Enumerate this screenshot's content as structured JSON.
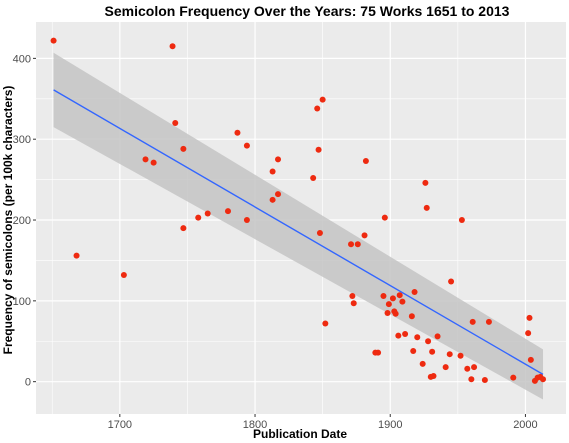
{
  "chart_data": {
    "type": "scatter",
    "title": "Semicolon Frequency Over the Years: 75 Works 1651 to 2013",
    "xlabel": "Publication Date",
    "ylabel": "Frequency of semicolons (per 100k characters)",
    "xlim": [
      1638,
      2030
    ],
    "ylim": [
      -40,
      445
    ],
    "x_ticks": [
      1700,
      1800,
      1900,
      2000
    ],
    "x_tick_labels": [
      "1700",
      "1800",
      "1900",
      "2000"
    ],
    "y_ticks": [
      0,
      100,
      200,
      300,
      400
    ],
    "y_tick_labels": [
      "0",
      "100",
      "200",
      "300",
      "400"
    ],
    "grid": true,
    "colors": {
      "panel_background": "#ebebeb",
      "grid": "#ffffff",
      "points": "#ee2a10",
      "trend_line": "#3366ff",
      "confidence_band": "#c4c4c4"
    },
    "trend": {
      "method": "linear",
      "x": [
        1651,
        2013
      ],
      "y": [
        361,
        9
      ],
      "band_upper": [
        407,
        40
      ],
      "band_lower": [
        315,
        -22
      ]
    },
    "points": [
      {
        "x": 1651,
        "y": 422
      },
      {
        "x": 1668,
        "y": 156
      },
      {
        "x": 1703,
        "y": 132
      },
      {
        "x": 1719,
        "y": 275
      },
      {
        "x": 1725,
        "y": 271
      },
      {
        "x": 1739,
        "y": 415
      },
      {
        "x": 1741,
        "y": 320
      },
      {
        "x": 1747,
        "y": 288
      },
      {
        "x": 1747,
        "y": 190
      },
      {
        "x": 1758,
        "y": 203
      },
      {
        "x": 1765,
        "y": 208
      },
      {
        "x": 1780,
        "y": 211
      },
      {
        "x": 1787,
        "y": 308
      },
      {
        "x": 1794,
        "y": 292
      },
      {
        "x": 1794,
        "y": 200
      },
      {
        "x": 1813,
        "y": 260
      },
      {
        "x": 1813,
        "y": 225
      },
      {
        "x": 1817,
        "y": 275
      },
      {
        "x": 1817,
        "y": 232
      },
      {
        "x": 1843,
        "y": 252
      },
      {
        "x": 1846,
        "y": 338
      },
      {
        "x": 1847,
        "y": 287
      },
      {
        "x": 1848,
        "y": 184
      },
      {
        "x": 1850,
        "y": 349
      },
      {
        "x": 1852,
        "y": 72
      },
      {
        "x": 1871,
        "y": 170
      },
      {
        "x": 1872,
        "y": 106
      },
      {
        "x": 1873,
        "y": 97
      },
      {
        "x": 1876,
        "y": 170
      },
      {
        "x": 1881,
        "y": 181
      },
      {
        "x": 1882,
        "y": 273
      },
      {
        "x": 1889,
        "y": 36
      },
      {
        "x": 1891,
        "y": 36
      },
      {
        "x": 1895,
        "y": 106
      },
      {
        "x": 1896,
        "y": 203
      },
      {
        "x": 1898,
        "y": 85
      },
      {
        "x": 1899,
        "y": 96
      },
      {
        "x": 1902,
        "y": 103
      },
      {
        "x": 1903,
        "y": 87
      },
      {
        "x": 1904,
        "y": 84
      },
      {
        "x": 1906,
        "y": 57
      },
      {
        "x": 1907,
        "y": 107
      },
      {
        "x": 1909,
        "y": 99
      },
      {
        "x": 1911,
        "y": 59
      },
      {
        "x": 1916,
        "y": 81
      },
      {
        "x": 1917,
        "y": 38
      },
      {
        "x": 1918,
        "y": 111
      },
      {
        "x": 1920,
        "y": 55
      },
      {
        "x": 1924,
        "y": 22
      },
      {
        "x": 1926,
        "y": 246
      },
      {
        "x": 1927,
        "y": 215
      },
      {
        "x": 1928,
        "y": 50
      },
      {
        "x": 1930,
        "y": 6
      },
      {
        "x": 1931,
        "y": 37
      },
      {
        "x": 1932,
        "y": 7
      },
      {
        "x": 1935,
        "y": 56
      },
      {
        "x": 1941,
        "y": 18
      },
      {
        "x": 1944,
        "y": 34
      },
      {
        "x": 1945,
        "y": 124
      },
      {
        "x": 1952,
        "y": 32
      },
      {
        "x": 1953,
        "y": 200
      },
      {
        "x": 1957,
        "y": 16
      },
      {
        "x": 1960,
        "y": 3
      },
      {
        "x": 1961,
        "y": 74
      },
      {
        "x": 1962,
        "y": 18
      },
      {
        "x": 1970,
        "y": 2
      },
      {
        "x": 1973,
        "y": 74
      },
      {
        "x": 1991,
        "y": 5
      },
      {
        "x": 2002,
        "y": 60
      },
      {
        "x": 2003,
        "y": 79
      },
      {
        "x": 2004,
        "y": 27
      },
      {
        "x": 2007,
        "y": 1
      },
      {
        "x": 2009,
        "y": 5
      },
      {
        "x": 2011,
        "y": 6
      },
      {
        "x": 2013,
        "y": 3
      }
    ]
  }
}
